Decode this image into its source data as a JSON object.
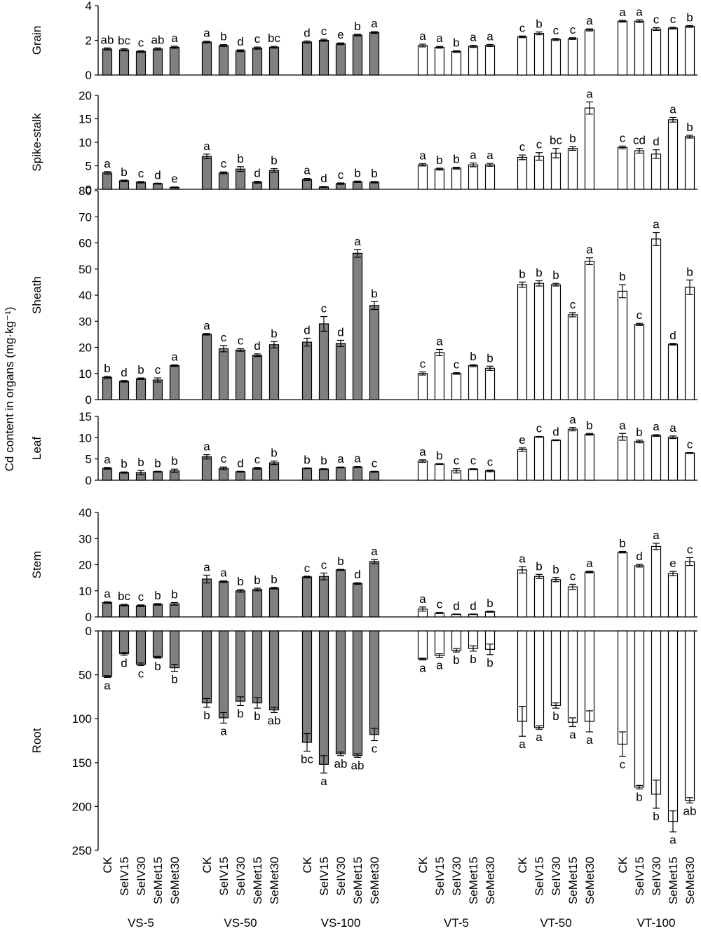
{
  "chart_data": {
    "type": "bar",
    "ylabel": "Cd content in organs (mg·kg⁻¹)",
    "treatments": [
      "CK",
      "SeIV15",
      "SeIV30",
      "SeMet15",
      "SeMet30"
    ],
    "groups": [
      {
        "name": "VS-5",
        "fill": "gray"
      },
      {
        "name": "VS-50",
        "fill": "gray"
      },
      {
        "name": "VS-100",
        "fill": "gray"
      },
      {
        "name": "VT-5",
        "fill": "white"
      },
      {
        "name": "VT-50",
        "fill": "white"
      },
      {
        "name": "VT-100",
        "fill": "white"
      }
    ],
    "colors": {
      "gray_bar": "#808080",
      "white_bar": "#ffffff",
      "outline": "#000000"
    },
    "panels": [
      {
        "label": "Grain",
        "ylim": [
          0,
          4
        ],
        "ticks": [
          0,
          2,
          4
        ],
        "direction": "up",
        "values": [
          [
            1.5,
            1.45,
            1.35,
            1.5,
            1.6
          ],
          [
            1.9,
            1.7,
            1.4,
            1.55,
            1.6
          ],
          [
            1.9,
            2.0,
            1.8,
            2.3,
            2.45
          ],
          [
            1.7,
            1.6,
            1.35,
            1.65,
            1.7
          ],
          [
            2.2,
            2.4,
            2.05,
            2.1,
            2.6
          ],
          [
            3.1,
            3.1,
            2.65,
            2.7,
            2.8
          ]
        ],
        "errors": [
          [
            0.06,
            0.06,
            0.05,
            0.06,
            0.06
          ],
          [
            0.05,
            0.05,
            0.05,
            0.06,
            0.05
          ],
          [
            0.06,
            0.06,
            0.05,
            0.05,
            0.05
          ],
          [
            0.08,
            0.05,
            0.05,
            0.06,
            0.06
          ],
          [
            0.05,
            0.08,
            0.06,
            0.05,
            0.06
          ],
          [
            0.05,
            0.08,
            0.08,
            0.05,
            0.05
          ]
        ],
        "letters": [
          [
            "ab",
            "bc",
            "c",
            "ab",
            "a"
          ],
          [
            "a",
            "b",
            "d",
            "c",
            "bc"
          ],
          [
            "d",
            "c",
            "e",
            "b",
            "a"
          ],
          [
            "a",
            "a",
            "b",
            "a",
            "a"
          ],
          [
            "c",
            "b",
            "c",
            "c",
            "a"
          ],
          [
            "a",
            "a",
            "c",
            "c",
            "b"
          ]
        ]
      },
      {
        "label": "Spike-stalk",
        "ylim": [
          0,
          20
        ],
        "ticks": [
          0,
          5,
          10,
          15,
          20
        ],
        "direction": "up",
        "values": [
          [
            3.5,
            1.8,
            1.5,
            1.2,
            0.4
          ],
          [
            7.0,
            3.5,
            4.3,
            1.5,
            4.0
          ],
          [
            2.1,
            0.5,
            1.2,
            1.6,
            1.5
          ],
          [
            5.2,
            4.3,
            4.5,
            5.2,
            5.2
          ],
          [
            6.8,
            7.0,
            7.7,
            8.7,
            17.3
          ],
          [
            8.9,
            8.2,
            7.5,
            14.8,
            11.2
          ]
        ],
        "errors": [
          [
            0.25,
            0.15,
            0.15,
            0.1,
            0.1
          ],
          [
            0.5,
            0.2,
            0.5,
            0.2,
            0.4
          ],
          [
            0.2,
            0.1,
            0.15,
            0.15,
            0.15
          ],
          [
            0.25,
            0.2,
            0.2,
            0.4,
            0.3
          ],
          [
            0.5,
            0.8,
            1.0,
            0.4,
            1.3
          ],
          [
            0.3,
            0.5,
            0.9,
            0.5,
            0.3
          ]
        ],
        "letters": [
          [
            "a",
            "b",
            "c",
            "d",
            "e"
          ],
          [
            "a",
            "c",
            "b",
            "d",
            "b"
          ],
          [
            "a",
            "d",
            "c",
            "b",
            "b"
          ],
          [
            "a",
            "b",
            "b",
            "a",
            "a"
          ],
          [
            "c",
            "c",
            "bc",
            "b",
            "a"
          ],
          [
            "c",
            "cd",
            "d",
            "a",
            "b"
          ]
        ]
      },
      {
        "label": "Sheath",
        "ylim": [
          0,
          80
        ],
        "ticks": [
          0,
          10,
          20,
          30,
          40,
          50,
          60,
          70,
          80
        ],
        "direction": "up",
        "values": [
          [
            8.5,
            7.0,
            8.0,
            7.5,
            13.0
          ],
          [
            25.0,
            19.5,
            19.0,
            17.0,
            21.0
          ],
          [
            22.0,
            29.0,
            21.5,
            56.0,
            36.0
          ],
          [
            10.0,
            18.0,
            10.0,
            13.0,
            12.0
          ],
          [
            44.0,
            44.5,
            44.0,
            32.5,
            53.0
          ],
          [
            41.5,
            28.8,
            61.5,
            21.2,
            43.0
          ]
        ],
        "errors": [
          [
            0.4,
            0.3,
            0.3,
            0.8,
            0.3
          ],
          [
            0.3,
            1.2,
            0.5,
            0.5,
            1.2
          ],
          [
            1.5,
            2.8,
            1.2,
            1.5,
            1.5
          ],
          [
            0.6,
            1.2,
            0.3,
            0.4,
            0.8
          ],
          [
            1.0,
            1.0,
            0.5,
            0.8,
            1.3
          ],
          [
            2.5,
            0.4,
            2.5,
            0.3,
            2.8
          ]
        ],
        "letters": [
          [
            "b",
            "d",
            "b",
            "c",
            "a"
          ],
          [
            "a",
            "c",
            "c",
            "d",
            "b"
          ],
          [
            "d",
            "c",
            "d",
            "a",
            "b"
          ],
          [
            "c",
            "a",
            "c",
            "b",
            "b"
          ],
          [
            "b",
            "b",
            "b",
            "c",
            "a"
          ],
          [
            "b",
            "c",
            "a",
            "d",
            "b"
          ]
        ]
      },
      {
        "label": "Leaf",
        "ylim": [
          0,
          15
        ],
        "ticks": [
          0,
          5,
          10,
          15
        ],
        "direction": "up",
        "values": [
          [
            2.8,
            1.8,
            1.8,
            2.0,
            2.2
          ],
          [
            5.5,
            2.8,
            2.0,
            2.8,
            4.1
          ],
          [
            2.8,
            2.6,
            3.0,
            3.1,
            2.0
          ],
          [
            4.5,
            3.8,
            2.2,
            2.6,
            2.2
          ],
          [
            7.2,
            10.2,
            9.4,
            12.0,
            10.8
          ],
          [
            10.2,
            9.1,
            10.5,
            10.1,
            6.4
          ]
        ],
        "errors": [
          [
            0.2,
            0.15,
            0.5,
            0.1,
            0.4
          ],
          [
            0.5,
            0.3,
            0.1,
            0.2,
            0.4
          ],
          [
            0.1,
            0.1,
            0.1,
            0.1,
            0.1
          ],
          [
            0.3,
            0.1,
            0.5,
            0.1,
            0.2
          ],
          [
            0.4,
            0.1,
            0.1,
            0.4,
            0.2
          ],
          [
            0.8,
            0.3,
            0.2,
            0.3,
            0.1
          ]
        ],
        "letters": [
          [
            "a",
            "b",
            "b",
            "b",
            "b"
          ],
          [
            "a",
            "c",
            "d",
            "c",
            "b"
          ],
          [
            "b",
            "b",
            "a",
            "a",
            "c"
          ],
          [
            "a",
            "b",
            "c",
            "c",
            "c"
          ],
          [
            "e",
            "c",
            "d",
            "a",
            "b"
          ],
          [
            "a",
            "b",
            "a",
            "a",
            "c"
          ]
        ]
      },
      {
        "label": "Stem",
        "ylim": [
          0,
          40
        ],
        "ticks": [
          0,
          10,
          20,
          30,
          40
        ],
        "direction": "up",
        "values": [
          [
            5.5,
            4.5,
            4.3,
            4.8,
            5.0
          ],
          [
            14.5,
            13.5,
            10.0,
            10.5,
            11.0
          ],
          [
            15.3,
            15.5,
            18.0,
            12.8,
            21.2
          ],
          [
            3.0,
            1.5,
            1.0,
            1.0,
            2.0
          ],
          [
            18.0,
            15.5,
            14.3,
            11.5,
            17.2
          ],
          [
            24.8,
            19.6,
            27.0,
            16.6,
            21.2
          ]
        ],
        "errors": [
          [
            0.3,
            0.3,
            0.3,
            0.3,
            0.5
          ],
          [
            1.5,
            0.3,
            0.5,
            0.5,
            0.3
          ],
          [
            0.3,
            1.3,
            0.2,
            0.3,
            0.8
          ],
          [
            0.8,
            0.2,
            0.1,
            0.1,
            0.2
          ],
          [
            1.2,
            0.8,
            0.8,
            1.0,
            0.3
          ],
          [
            0.3,
            0.5,
            1.2,
            0.8,
            1.5
          ]
        ],
        "letters": [
          [
            "a",
            "bc",
            "c",
            "b",
            "b"
          ],
          [
            "a",
            "a",
            "b",
            "b",
            "b"
          ],
          [
            "c",
            "c",
            "b",
            "d",
            "a"
          ],
          [
            "a",
            "c",
            "d",
            "d",
            "b"
          ],
          [
            "a",
            "b",
            "b",
            "c",
            "a"
          ],
          [
            "b",
            "d",
            "a",
            "e",
            "c"
          ]
        ]
      },
      {
        "label": "Root",
        "ylim": [
          0,
          250
        ],
        "ticks": [
          0,
          50,
          100,
          150,
          200,
          250
        ],
        "direction": "down",
        "values": [
          [
            52,
            26,
            38,
            30,
            42
          ],
          [
            82,
            99,
            80,
            82,
            90
          ],
          [
            127,
            152,
            140,
            142,
            118
          ],
          [
            32,
            28,
            22,
            20,
            21
          ],
          [
            103,
            110,
            85,
            104,
            103
          ],
          [
            129,
            178,
            186,
            217,
            193
          ]
        ],
        "errors": [
          [
            1,
            1.5,
            1.5,
            1,
            4
          ],
          [
            5,
            6,
            5,
            6,
            3
          ],
          [
            10,
            10,
            2,
            2,
            7
          ],
          [
            1,
            2,
            2,
            3,
            6
          ],
          [
            17,
            2,
            3,
            5,
            12
          ],
          [
            14,
            2,
            16,
            12,
            3
          ]
        ],
        "letters": [
          [
            "a",
            "d",
            "c",
            "b",
            "b"
          ],
          [
            "b",
            "a",
            "b",
            "b",
            "ab"
          ],
          [
            "bc",
            "a",
            "ab",
            "ab",
            "c"
          ],
          [
            "a",
            "a",
            "b",
            "b",
            "b"
          ],
          [
            "a",
            "a",
            "b",
            "a",
            "a"
          ],
          [
            "c",
            "b",
            "b",
            "a",
            "ab"
          ]
        ]
      }
    ]
  }
}
